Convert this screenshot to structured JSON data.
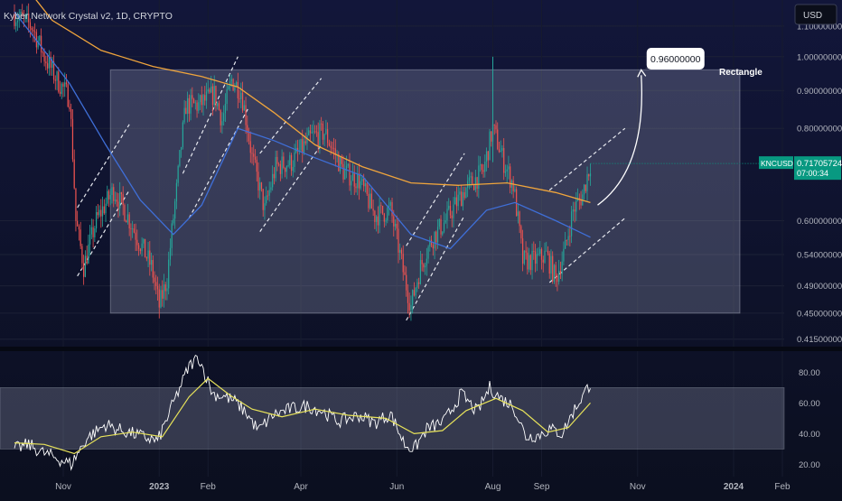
{
  "header": {
    "symbol_title": "Kyber Network Crystal v2, 1D, CRYPTO",
    "currency": "USD"
  },
  "colors": {
    "up": "#26a69a",
    "down": "#ef5350",
    "ma_slow": "#f0a53c",
    "ma_fast": "#3f6fd8",
    "rsi": "#ffffff",
    "rsi_ma": "#e8e35a",
    "price_badge": "#089981",
    "background_top": "#12163a",
    "background_bottom": "#0b0f1f"
  },
  "chart_data": [
    {
      "type": "candlestick",
      "title": "Kyber Network Crystal v2, 1D, CRYPTO",
      "log_scale": true,
      "ylim": [
        0.41,
        1.16
      ],
      "x_ticks": [
        {
          "label": "Nov",
          "date": "2022-11-01"
        },
        {
          "label": "2023",
          "date": "2023-01-01"
        },
        {
          "label": "Feb",
          "date": "2023-02-01"
        },
        {
          "label": "Apr",
          "date": "2023-04-01"
        },
        {
          "label": "Jun",
          "date": "2023-06-01"
        },
        {
          "label": "Aug",
          "date": "2023-08-01"
        },
        {
          "label": "Sep",
          "date": "2023-09-01"
        },
        {
          "label": "Nov",
          "date": "2023-11-01"
        },
        {
          "label": "2024",
          "date": "2024-01-01"
        },
        {
          "label": "Feb",
          "date": "2024-02-01"
        }
      ],
      "y_ticks": [
        "1.10000000",
        "1.00000000",
        "0.90000000",
        "0.80000000",
        "0.60000000",
        "0.54000000",
        "0.49000000",
        "0.45000000",
        "0.41500000"
      ],
      "y_tick_values": [
        1.1,
        1.0,
        0.9,
        0.8,
        0.6,
        0.54,
        0.49,
        0.45,
        0.415
      ],
      "price_anchors": [
        [
          "2022-10-01",
          1.14
        ],
        [
          "2022-10-12",
          1.1
        ],
        [
          "2022-10-20",
          1.0
        ],
        [
          "2022-10-28",
          0.93
        ],
        [
          "2022-11-05",
          0.88
        ],
        [
          "2022-11-09",
          0.6
        ],
        [
          "2022-11-14",
          0.52
        ],
        [
          "2022-11-22",
          0.6
        ],
        [
          "2022-12-03",
          0.66
        ],
        [
          "2022-12-10",
          0.62
        ],
        [
          "2022-12-18",
          0.57
        ],
        [
          "2022-12-27",
          0.52
        ],
        [
          "2023-01-01",
          0.46
        ],
        [
          "2023-01-06",
          0.5
        ],
        [
          "2023-01-12",
          0.66
        ],
        [
          "2023-01-18",
          0.86
        ],
        [
          "2023-01-26",
          0.86
        ],
        [
          "2023-02-05",
          0.89
        ],
        [
          "2023-02-10",
          0.82
        ],
        [
          "2023-02-16",
          0.93
        ],
        [
          "2023-02-22",
          0.9
        ],
        [
          "2023-03-01",
          0.73
        ],
        [
          "2023-03-09",
          0.62
        ],
        [
          "2023-03-16",
          0.71
        ],
        [
          "2023-03-26",
          0.72
        ],
        [
          "2023-04-08",
          0.78
        ],
        [
          "2023-04-16",
          0.79
        ],
        [
          "2023-04-28",
          0.7
        ],
        [
          "2023-05-08",
          0.68
        ],
        [
          "2023-05-18",
          0.61
        ],
        [
          "2023-05-28",
          0.62
        ],
        [
          "2023-06-06",
          0.5
        ],
        [
          "2023-06-10",
          0.46
        ],
        [
          "2023-06-16",
          0.52
        ],
        [
          "2023-06-24",
          0.57
        ],
        [
          "2023-07-02",
          0.6
        ],
        [
          "2023-07-14",
          0.66
        ],
        [
          "2023-07-26",
          0.7
        ],
        [
          "2023-08-01",
          0.8
        ],
        [
          "2023-08-08",
          0.72
        ],
        [
          "2023-08-14",
          0.67
        ],
        [
          "2023-08-20",
          0.53
        ],
        [
          "2023-08-27",
          0.53
        ],
        [
          "2023-09-04",
          0.54
        ],
        [
          "2023-09-10",
          0.5
        ],
        [
          "2023-09-16",
          0.55
        ],
        [
          "2023-09-21",
          0.62
        ],
        [
          "2023-09-27",
          0.65
        ],
        [
          "2023-10-02",
          0.717
        ]
      ],
      "ma_slow_anchors": [
        [
          "2022-10-01",
          1.3
        ],
        [
          "2022-10-25",
          1.12
        ],
        [
          "2022-11-25",
          1.02
        ],
        [
          "2022-12-28",
          0.97
        ],
        [
          "2023-01-28",
          0.94
        ],
        [
          "2023-02-20",
          0.91
        ],
        [
          "2023-03-15",
          0.84
        ],
        [
          "2023-04-10",
          0.76
        ],
        [
          "2023-05-10",
          0.71
        ],
        [
          "2023-06-10",
          0.675
        ],
        [
          "2023-07-10",
          0.67
        ],
        [
          "2023-08-10",
          0.675
        ],
        [
          "2023-09-10",
          0.655
        ],
        [
          "2023-10-02",
          0.635
        ]
      ],
      "ma_fast_anchors": [
        [
          "2022-10-01",
          1.15
        ],
        [
          "2022-11-05",
          0.92
        ],
        [
          "2022-11-28",
          0.76
        ],
        [
          "2022-12-20",
          0.64
        ],
        [
          "2023-01-10",
          0.575
        ],
        [
          "2023-01-28",
          0.63
        ],
        [
          "2023-02-20",
          0.8
        ],
        [
          "2023-03-15",
          0.77
        ],
        [
          "2023-04-10",
          0.73
        ],
        [
          "2023-05-10",
          0.69
        ],
        [
          "2023-06-10",
          0.575
        ],
        [
          "2023-07-05",
          0.55
        ],
        [
          "2023-07-28",
          0.62
        ],
        [
          "2023-08-15",
          0.635
        ],
        [
          "2023-09-10",
          0.6
        ],
        [
          "2023-10-02",
          0.57
        ]
      ],
      "rectangle": {
        "label": "Rectangle",
        "from": "2022-12-01",
        "to": "2024-01-05",
        "top": 0.96,
        "bottom": 0.45
      },
      "target_label": "0.96000000",
      "target_arrow_to": [
        "2023-11-01",
        0.96
      ],
      "current_price": {
        "symbol": "KNCUSD",
        "price": "0.71705724",
        "countdown": "07:00:34",
        "value": 0.717
      },
      "channel_lines": [
        [
          [
            "2022-11-10",
            0.505
          ],
          [
            "2022-12-13",
            0.66
          ]
        ],
        [
          [
            "2022-11-10",
            0.625
          ],
          [
            "2022-12-13",
            0.81
          ]
        ],
        [
          [
            "2023-01-16",
            0.695
          ],
          [
            "2023-02-20",
            1.0
          ]
        ],
        [
          [
            "2023-01-20",
            0.605
          ],
          [
            "2023-02-27",
            0.855
          ]
        ],
        [
          [
            "2023-03-06",
            0.58
          ],
          [
            "2023-04-14",
            0.76
          ]
        ],
        [
          [
            "2023-03-06",
            0.74
          ],
          [
            "2023-04-14",
            0.935
          ]
        ],
        [
          [
            "2023-06-07",
            0.44
          ],
          [
            "2023-07-14",
            0.61
          ]
        ],
        [
          [
            "2023-06-07",
            0.555
          ],
          [
            "2023-07-14",
            0.74
          ]
        ],
        [
          [
            "2023-09-06",
            0.495
          ],
          [
            "2023-10-24",
            0.605
          ]
        ],
        [
          [
            "2023-09-06",
            0.66
          ],
          [
            "2023-10-24",
            0.8
          ]
        ]
      ]
    },
    {
      "type": "line",
      "name": "RSI panel",
      "ylim": [
        12,
        92
      ],
      "y_ticks": [
        "80.00",
        "60.00",
        "40.00",
        "20.00"
      ],
      "y_tick_values": [
        80,
        60,
        40,
        20
      ],
      "band": [
        30,
        70
      ],
      "rsi_anchors": [
        [
          "2022-10-01",
          30
        ],
        [
          "2022-10-10",
          33
        ],
        [
          "2022-10-18",
          28
        ],
        [
          "2022-10-28",
          24
        ],
        [
          "2022-11-06",
          20
        ],
        [
          "2022-11-16",
          37
        ],
        [
          "2022-11-28",
          46
        ],
        [
          "2022-12-05",
          43
        ],
        [
          "2022-12-12",
          41
        ],
        [
          "2022-12-22",
          38
        ],
        [
          "2022-12-31",
          35
        ],
        [
          "2023-01-10",
          60
        ],
        [
          "2023-01-20",
          84
        ],
        [
          "2023-01-26",
          90
        ],
        [
          "2023-02-04",
          66
        ],
        [
          "2023-02-12",
          64
        ],
        [
          "2023-02-18",
          61
        ],
        [
          "2023-02-25",
          54
        ],
        [
          "2023-03-05",
          42
        ],
        [
          "2023-03-14",
          52
        ],
        [
          "2023-03-25",
          56
        ],
        [
          "2023-04-05",
          58
        ],
        [
          "2023-04-14",
          55
        ],
        [
          "2023-04-25",
          48
        ],
        [
          "2023-05-08",
          52
        ],
        [
          "2023-05-18",
          47
        ],
        [
          "2023-05-28",
          53
        ],
        [
          "2023-06-06",
          33
        ],
        [
          "2023-06-12",
          30
        ],
        [
          "2023-06-20",
          43
        ],
        [
          "2023-07-01",
          48
        ],
        [
          "2023-07-12",
          66
        ],
        [
          "2023-07-22",
          54
        ],
        [
          "2023-07-30",
          70
        ],
        [
          "2023-08-06",
          63
        ],
        [
          "2023-08-14",
          58
        ],
        [
          "2023-08-22",
          38
        ],
        [
          "2023-08-30",
          39
        ],
        [
          "2023-09-06",
          43
        ],
        [
          "2023-09-14",
          40
        ],
        [
          "2023-09-22",
          56
        ],
        [
          "2023-09-28",
          66
        ],
        [
          "2023-10-02",
          73
        ]
      ],
      "rsi_ma_anchors": [
        [
          "2022-10-01",
          34
        ],
        [
          "2022-10-20",
          33
        ],
        [
          "2022-11-08",
          27
        ],
        [
          "2022-11-25",
          38
        ],
        [
          "2022-12-15",
          41
        ],
        [
          "2023-01-03",
          38
        ],
        [
          "2023-01-20",
          64
        ],
        [
          "2023-02-01",
          76
        ],
        [
          "2023-02-15",
          65
        ],
        [
          "2023-03-01",
          56
        ],
        [
          "2023-03-20",
          51
        ],
        [
          "2023-04-10",
          56
        ],
        [
          "2023-05-01",
          52
        ],
        [
          "2023-05-25",
          50
        ],
        [
          "2023-06-12",
          40
        ],
        [
          "2023-06-30",
          42
        ],
        [
          "2023-07-15",
          55
        ],
        [
          "2023-08-03",
          63
        ],
        [
          "2023-08-20",
          55
        ],
        [
          "2023-09-05",
          41
        ],
        [
          "2023-09-18",
          44
        ],
        [
          "2023-10-02",
          60
        ]
      ]
    }
  ]
}
